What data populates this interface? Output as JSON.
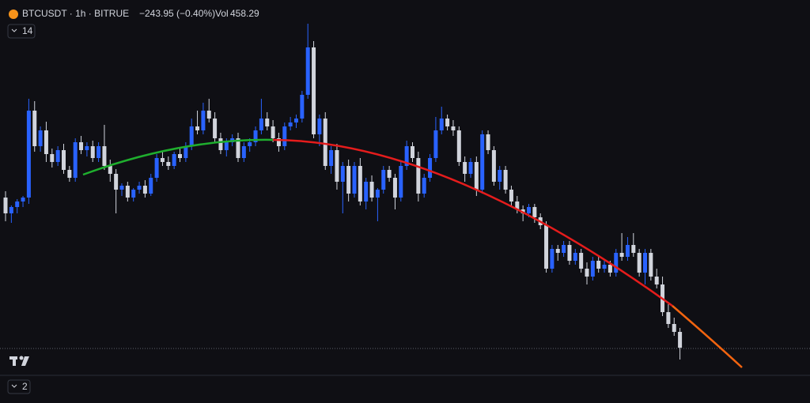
{
  "header": {
    "symbol": "BTCUSDT · 1h · BITRUE",
    "change": "−243.95 (−0.40%)",
    "vol_label": "Vol",
    "vol": "458.29",
    "pane_toggle": "14",
    "bottom_pane_toggle": "2"
  },
  "chart_data": {
    "type": "candlestick",
    "up_color": "#2962ff",
    "down_color": "#d1d4dc",
    "ylim": [
      0,
      510
    ],
    "ohlc": [
      [
        260,
        268,
        230,
        240
      ],
      [
        240,
        250,
        228,
        248
      ],
      [
        248,
        258,
        240,
        255
      ],
      [
        255,
        262,
        248,
        260
      ],
      [
        260,
        385,
        252,
        370
      ],
      [
        370,
        382,
        318,
        325
      ],
      [
        325,
        350,
        318,
        345
      ],
      [
        345,
        356,
        305,
        315
      ],
      [
        315,
        322,
        298,
        305
      ],
      [
        305,
        325,
        300,
        320
      ],
      [
        320,
        328,
        290,
        295
      ],
      [
        295,
        300,
        280,
        285
      ],
      [
        285,
        335,
        280,
        330
      ],
      [
        330,
        338,
        315,
        320
      ],
      [
        320,
        330,
        312,
        325
      ],
      [
        325,
        332,
        305,
        310
      ],
      [
        310,
        330,
        305,
        325
      ],
      [
        325,
        352,
        295,
        300
      ],
      [
        300,
        308,
        280,
        290
      ],
      [
        290,
        296,
        240,
        270
      ],
      [
        270,
        278,
        262,
        275
      ],
      [
        275,
        280,
        255,
        260
      ],
      [
        260,
        272,
        255,
        270
      ],
      [
        270,
        280,
        265,
        275
      ],
      [
        275,
        282,
        260,
        265
      ],
      [
        265,
        290,
        262,
        285
      ],
      [
        285,
        315,
        280,
        310
      ],
      [
        310,
        318,
        300,
        305
      ],
      [
        305,
        312,
        295,
        300
      ],
      [
        300,
        318,
        296,
        315
      ],
      [
        315,
        322,
        305,
        310
      ],
      [
        310,
        330,
        305,
        325
      ],
      [
        325,
        360,
        320,
        350
      ],
      [
        350,
        370,
        340,
        345
      ],
      [
        345,
        380,
        340,
        370
      ],
      [
        370,
        385,
        355,
        360
      ],
      [
        360,
        368,
        330,
        335
      ],
      [
        335,
        342,
        315,
        320
      ],
      [
        320,
        335,
        312,
        330
      ],
      [
        330,
        340,
        325,
        335
      ],
      [
        335,
        342,
        305,
        310
      ],
      [
        310,
        330,
        305,
        325
      ],
      [
        325,
        335,
        318,
        330
      ],
      [
        330,
        350,
        325,
        345
      ],
      [
        345,
        385,
        340,
        360
      ],
      [
        360,
        368,
        345,
        350
      ],
      [
        350,
        358,
        330,
        335
      ],
      [
        335,
        342,
        318,
        325
      ],
      [
        325,
        355,
        320,
        350
      ],
      [
        350,
        362,
        345,
        355
      ],
      [
        355,
        365,
        348,
        360
      ],
      [
        360,
        395,
        355,
        390
      ],
      [
        390,
        480,
        385,
        450
      ],
      [
        450,
        458,
        335,
        340
      ],
      [
        340,
        365,
        325,
        360
      ],
      [
        360,
        368,
        295,
        300
      ],
      [
        300,
        325,
        290,
        320
      ],
      [
        320,
        328,
        270,
        280
      ],
      [
        280,
        305,
        240,
        300
      ],
      [
        300,
        308,
        255,
        265
      ],
      [
        265,
        305,
        260,
        300
      ],
      [
        300,
        310,
        250,
        255
      ],
      [
        255,
        285,
        245,
        280
      ],
      [
        280,
        288,
        255,
        260
      ],
      [
        260,
        272,
        230,
        270
      ],
      [
        270,
        300,
        265,
        295
      ],
      [
        295,
        300,
        280,
        285
      ],
      [
        285,
        290,
        245,
        260
      ],
      [
        260,
        305,
        255,
        300
      ],
      [
        300,
        332,
        295,
        325
      ],
      [
        325,
        330,
        305,
        310
      ],
      [
        310,
        318,
        255,
        265
      ],
      [
        265,
        290,
        260,
        285
      ],
      [
        285,
        315,
        280,
        310
      ],
      [
        310,
        362,
        305,
        345
      ],
      [
        345,
        375,
        340,
        360
      ],
      [
        360,
        365,
        345,
        350
      ],
      [
        350,
        358,
        338,
        345
      ],
      [
        345,
        350,
        300,
        305
      ],
      [
        305,
        312,
        280,
        290
      ],
      [
        290,
        310,
        285,
        305
      ],
      [
        305,
        312,
        262,
        270
      ],
      [
        270,
        345,
        265,
        340
      ],
      [
        340,
        345,
        315,
        320
      ],
      [
        320,
        325,
        275,
        280
      ],
      [
        280,
        300,
        270,
        295
      ],
      [
        295,
        300,
        265,
        270
      ],
      [
        270,
        275,
        250,
        255
      ],
      [
        255,
        262,
        240,
        245
      ],
      [
        245,
        250,
        230,
        240
      ],
      [
        240,
        252,
        235,
        248
      ],
      [
        248,
        252,
        228,
        235
      ],
      [
        235,
        240,
        220,
        225
      ],
      [
        225,
        230,
        165,
        170
      ],
      [
        170,
        200,
        165,
        195
      ],
      [
        195,
        200,
        180,
        190
      ],
      [
        190,
        205,
        185,
        200
      ],
      [
        200,
        205,
        175,
        180
      ],
      [
        180,
        195,
        175,
        190
      ],
      [
        190,
        195,
        165,
        170
      ],
      [
        170,
        178,
        150,
        160
      ],
      [
        160,
        185,
        155,
        180
      ],
      [
        180,
        185,
        165,
        170
      ],
      [
        170,
        182,
        165,
        175
      ],
      [
        175,
        180,
        160,
        165
      ],
      [
        165,
        195,
        160,
        190
      ],
      [
        190,
        215,
        180,
        185
      ],
      [
        185,
        210,
        180,
        200
      ],
      [
        200,
        215,
        185,
        190
      ],
      [
        190,
        195,
        160,
        165
      ],
      [
        165,
        195,
        150,
        190
      ],
      [
        190,
        195,
        155,
        160
      ],
      [
        160,
        170,
        145,
        150
      ],
      [
        150,
        160,
        110,
        115
      ],
      [
        115,
        125,
        95,
        100
      ],
      [
        100,
        108,
        85,
        90
      ],
      [
        90,
        95,
        55,
        70
      ]
    ]
  }
}
